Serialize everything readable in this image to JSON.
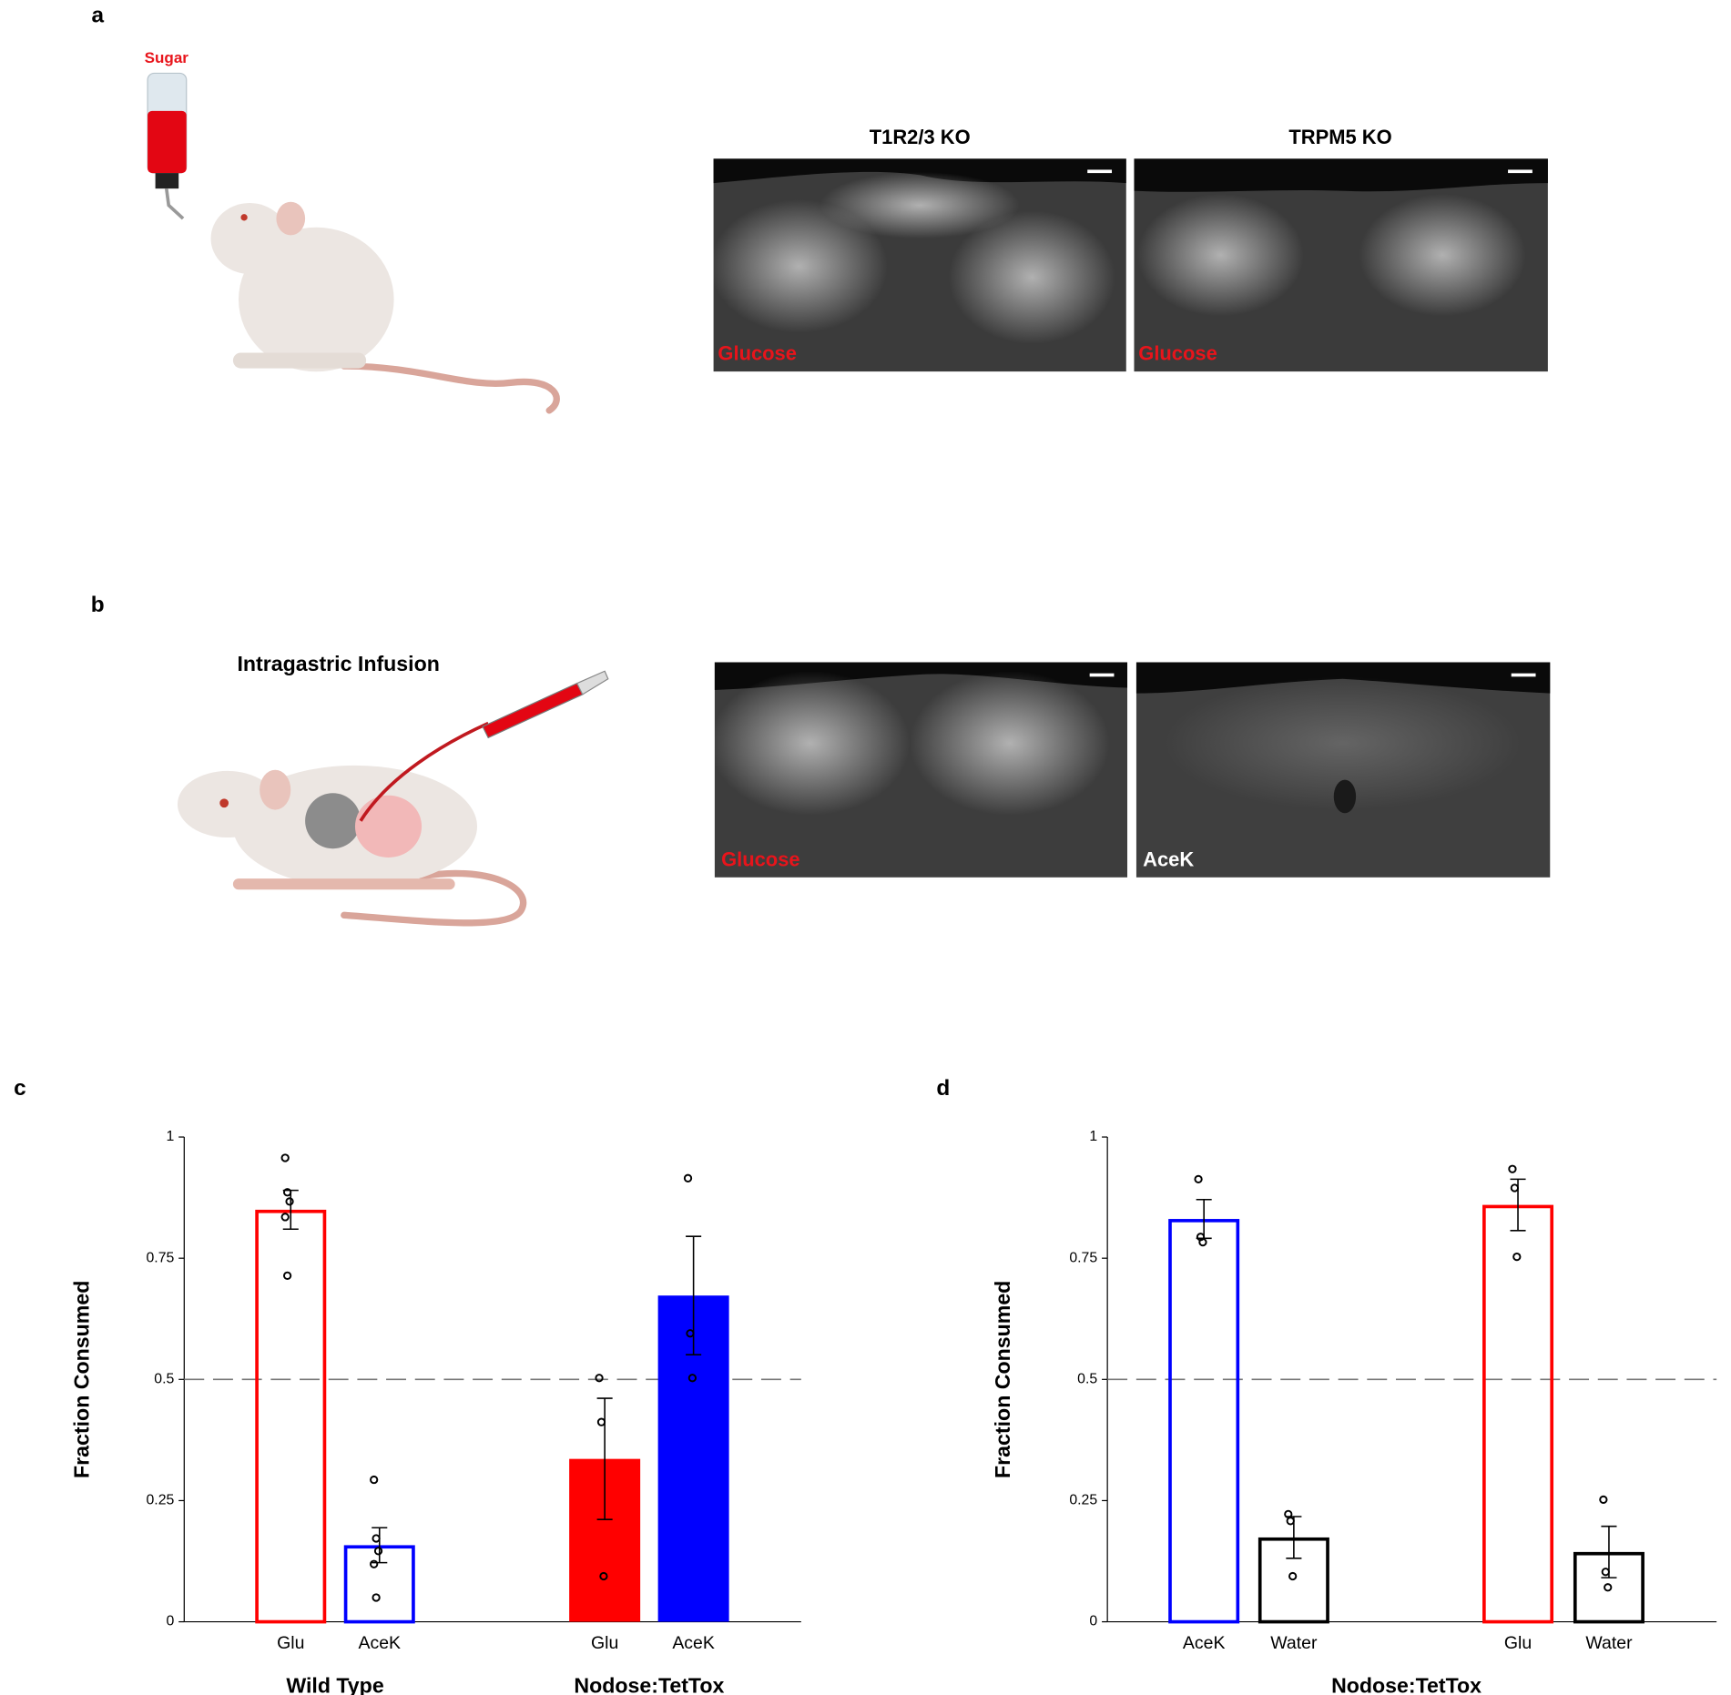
{
  "panels": {
    "a": {
      "label": "a",
      "bottle_label": "Sugar",
      "images": [
        {
          "title": "T1R2/3 KO",
          "label": "Glucose"
        },
        {
          "title": "TRPM5 KO",
          "label": "Glucose"
        }
      ]
    },
    "b": {
      "label": "b",
      "title": "Intragastric Infusion",
      "images": [
        {
          "label": "Glucose"
        },
        {
          "label": "AceK"
        }
      ]
    }
  },
  "chart_data": [
    {
      "type": "bar",
      "panel": "c",
      "ylabel": "Fraction Consumed",
      "ylim": [
        0,
        1
      ],
      "yticks": [
        0,
        0.25,
        0.5,
        0.75,
        1
      ],
      "reference_line": 0.5,
      "groups": [
        {
          "name": "Wild Type",
          "categories": [
            "Glu",
            "AceK"
          ],
          "values": [
            0.85,
            0.158
          ],
          "errors": [
            0.04,
            0.036
          ],
          "colors": [
            "#ff0000",
            "#0000ff"
          ],
          "filled": [
            false,
            false
          ],
          "points": [
            [
              0.957,
              0.886,
              0.867,
              0.835,
              0.714
            ],
            [
              0.293,
              0.172,
              0.146,
              0.119,
              0.05
            ]
          ]
        },
        {
          "name": "Nodose:TetTox",
          "categories": [
            "Glu",
            "AceK"
          ],
          "values": [
            0.336,
            0.673
          ],
          "errors": [
            0.125,
            0.122
          ],
          "colors": [
            "#ff0000",
            "#0000ff"
          ],
          "filled": [
            true,
            true
          ],
          "points": [
            [
              0.503,
              0.412,
              0.094
            ],
            [
              0.915,
              0.595,
              0.503
            ]
          ]
        }
      ]
    },
    {
      "type": "bar",
      "panel": "d",
      "ylabel": "Fraction Consumed",
      "ylim": [
        0,
        1
      ],
      "yticks": [
        0,
        0.25,
        0.5,
        0.75,
        1
      ],
      "reference_line": 0.5,
      "group_label": "Nodose:TetTox",
      "groups": [
        {
          "categories": [
            "AceK",
            "Water"
          ],
          "values": [
            0.831,
            0.174
          ],
          "errors": [
            0.04,
            0.043
          ],
          "colors": [
            "#0000ff",
            "#000000"
          ],
          "filled": [
            false,
            false
          ],
          "points": [
            [
              0.913,
              0.794,
              0.783
            ],
            [
              0.222,
              0.208,
              0.094
            ]
          ]
        },
        {
          "categories": [
            "Glu",
            "Water"
          ],
          "values": [
            0.86,
            0.144
          ],
          "errors": [
            0.053,
            0.053
          ],
          "colors": [
            "#ff0000",
            "#000000"
          ],
          "filled": [
            false,
            false
          ],
          "points": [
            [
              0.934,
              0.895,
              0.753
            ],
            [
              0.252,
              0.103,
              0.071
            ]
          ]
        }
      ]
    }
  ]
}
